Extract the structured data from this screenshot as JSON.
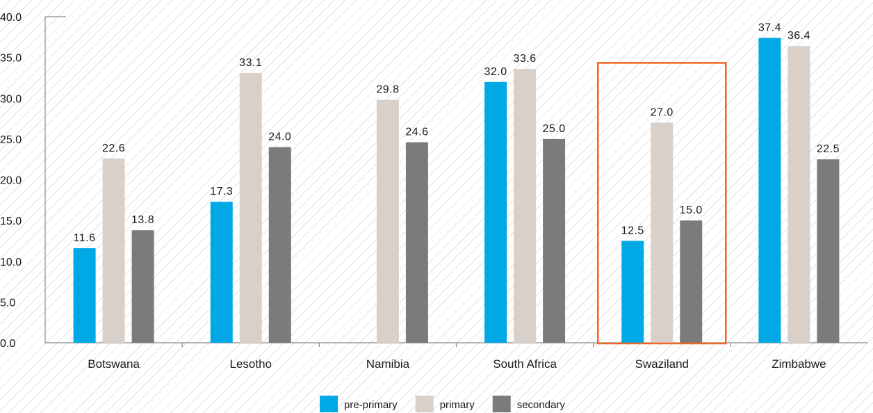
{
  "chart_data": {
    "type": "bar",
    "categories": [
      "Botswana",
      "Lesotho",
      "Namibia",
      "South Africa",
      "Swaziland",
      "Zimbabwe"
    ],
    "series": [
      {
        "name": "pre-primary",
        "values": [
          11.6,
          17.3,
          null,
          32.0,
          12.5,
          37.4
        ],
        "color": "#00a9e6"
      },
      {
        "name": "primary",
        "values": [
          22.6,
          33.1,
          29.8,
          33.6,
          27.0,
          36.4
        ],
        "color": "#d9d0c9"
      },
      {
        "name": "secondary",
        "values": [
          13.8,
          24.0,
          24.6,
          25.0,
          15.0,
          22.5
        ],
        "color": "#7b7b7b"
      }
    ],
    "ylim": [
      0,
      40
    ],
    "yticks": [
      "0.0",
      "5.0",
      "10.0",
      "15.0",
      "20.0",
      "25.0",
      "30.0",
      "35.0",
      "40.0"
    ],
    "value_labels": [
      [
        "11.6",
        "17.3",
        "",
        "32.0",
        "12.5",
        "37.4"
      ],
      [
        "22.6",
        "33.1",
        "29.8",
        "33.6",
        "27.0",
        "36.4"
      ],
      [
        "13.8",
        "24.0",
        "24.6",
        "25.0",
        "15.0",
        "22.5"
      ]
    ],
    "highlight_category": "Swaziland",
    "highlight_color": "#f26522",
    "legend_position": "bottom",
    "grid": false
  }
}
